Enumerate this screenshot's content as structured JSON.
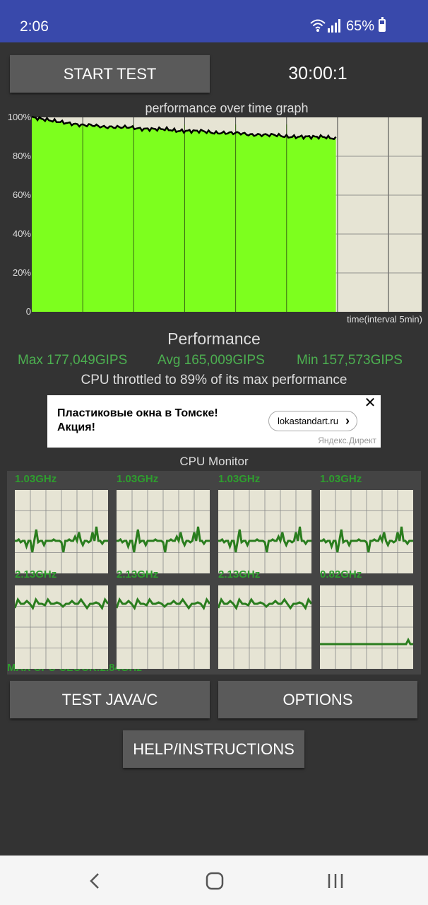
{
  "status_bar": {
    "time": "2:06",
    "battery": "65%"
  },
  "header": {
    "start_button": "START TEST",
    "timer": "30:00:1"
  },
  "graph": {
    "title": "performance over time graph",
    "y_ticks": [
      "100%",
      "80%",
      "60%",
      "40%",
      "20%",
      "0"
    ],
    "x_label": "time(interval 5min)",
    "fill_color": "#7dff1e",
    "line_color": "#000000",
    "perf_values": [
      100,
      99,
      98,
      97,
      96,
      96,
      95,
      95,
      95,
      94,
      94,
      94,
      93,
      93,
      93,
      92,
      92,
      92,
      91,
      91,
      91,
      90,
      90,
      90,
      90,
      89
    ],
    "filled_fraction": 0.78
  },
  "performance": {
    "title": "Performance",
    "max": "Max 177,049GIPS",
    "avg": "Avg 165,009GIPS",
    "min": "Min 157,573GIPS",
    "throttle": "CPU throttled to 89% of its max performance"
  },
  "ad": {
    "text_line1": "Пластиковые окна в Томске!",
    "text_line2": "Акция!",
    "link": "lokastandart.ru",
    "source": "Яндекс.Директ"
  },
  "cpu_monitor": {
    "title": "CPU Monitor",
    "cores": [
      {
        "freq": "1.03GHz"
      },
      {
        "freq": "1.03GHz"
      },
      {
        "freq": "1.03GHz"
      },
      {
        "freq": "1.03GHz"
      },
      {
        "freq": "2.13GHz"
      },
      {
        "freq": "2.13GHz"
      },
      {
        "freq": "2.13GHz"
      },
      {
        "freq": "0.82GHz"
      }
    ],
    "max_clock": "MAX CPU CLOCK:2.84GHz"
  },
  "buttons": {
    "test_java": "TEST JAVA/C",
    "options": "OPTIONS",
    "help": "HELP/INSTRUCTIONS"
  }
}
